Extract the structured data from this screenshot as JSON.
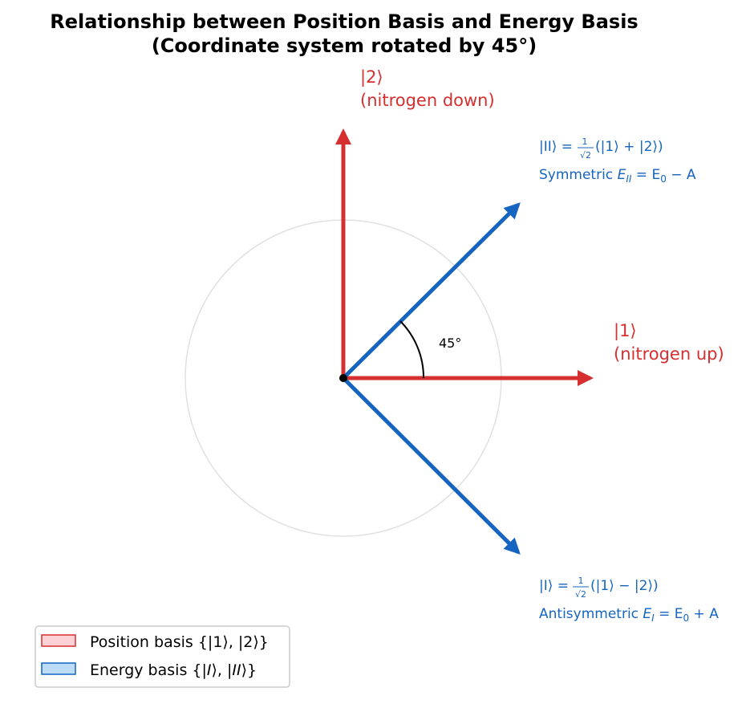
{
  "title_line1": "Relationship between Position Basis and Energy Basis",
  "title_line2": "(Coordinate system rotated by 45°)",
  "vectors": {
    "state1": {
      "label": "|1⟩",
      "sublabel": "(nitrogen up)"
    },
    "state2": {
      "label": "|2⟩",
      "sublabel": "(nitrogen down)"
    },
    "stateII": {
      "eq_lhs": "|II⟩ = ",
      "eq_rhs": "(|1⟩ + |2⟩)",
      "frac_num": "1",
      "frac_den": "√2",
      "desc_prefix": "Symmetric ",
      "energy_symbol": "E",
      "energy_sub": "II",
      "energy_rhs": " = E",
      "energy_rhs_sub": "0",
      "energy_rhs_tail": " − A"
    },
    "stateI": {
      "eq_lhs": "|I⟩ = ",
      "eq_rhs": "(|1⟩ − |2⟩)",
      "frac_num": "1",
      "frac_den": "√2",
      "desc_prefix": "Antisymmetric ",
      "energy_symbol": "E",
      "energy_sub": "I",
      "energy_rhs": " = E",
      "energy_rhs_sub": "0",
      "energy_rhs_tail": " + A"
    }
  },
  "angle_label": "45°",
  "legend": {
    "position": {
      "text_prefix": "Position basis {|1⟩, |2⟩}"
    },
    "energy": {
      "text_prefix": "Energy basis {|",
      "i": "I",
      "mid": "⟩, |",
      "ii": "II",
      "suffix": "⟩}"
    }
  },
  "colors": {
    "position": "#d62f2f",
    "energy": "#1565c0",
    "position_fill": "#fcd2d6",
    "energy_fill": "#bcdcf7",
    "circle": "#e0e0e0"
  }
}
